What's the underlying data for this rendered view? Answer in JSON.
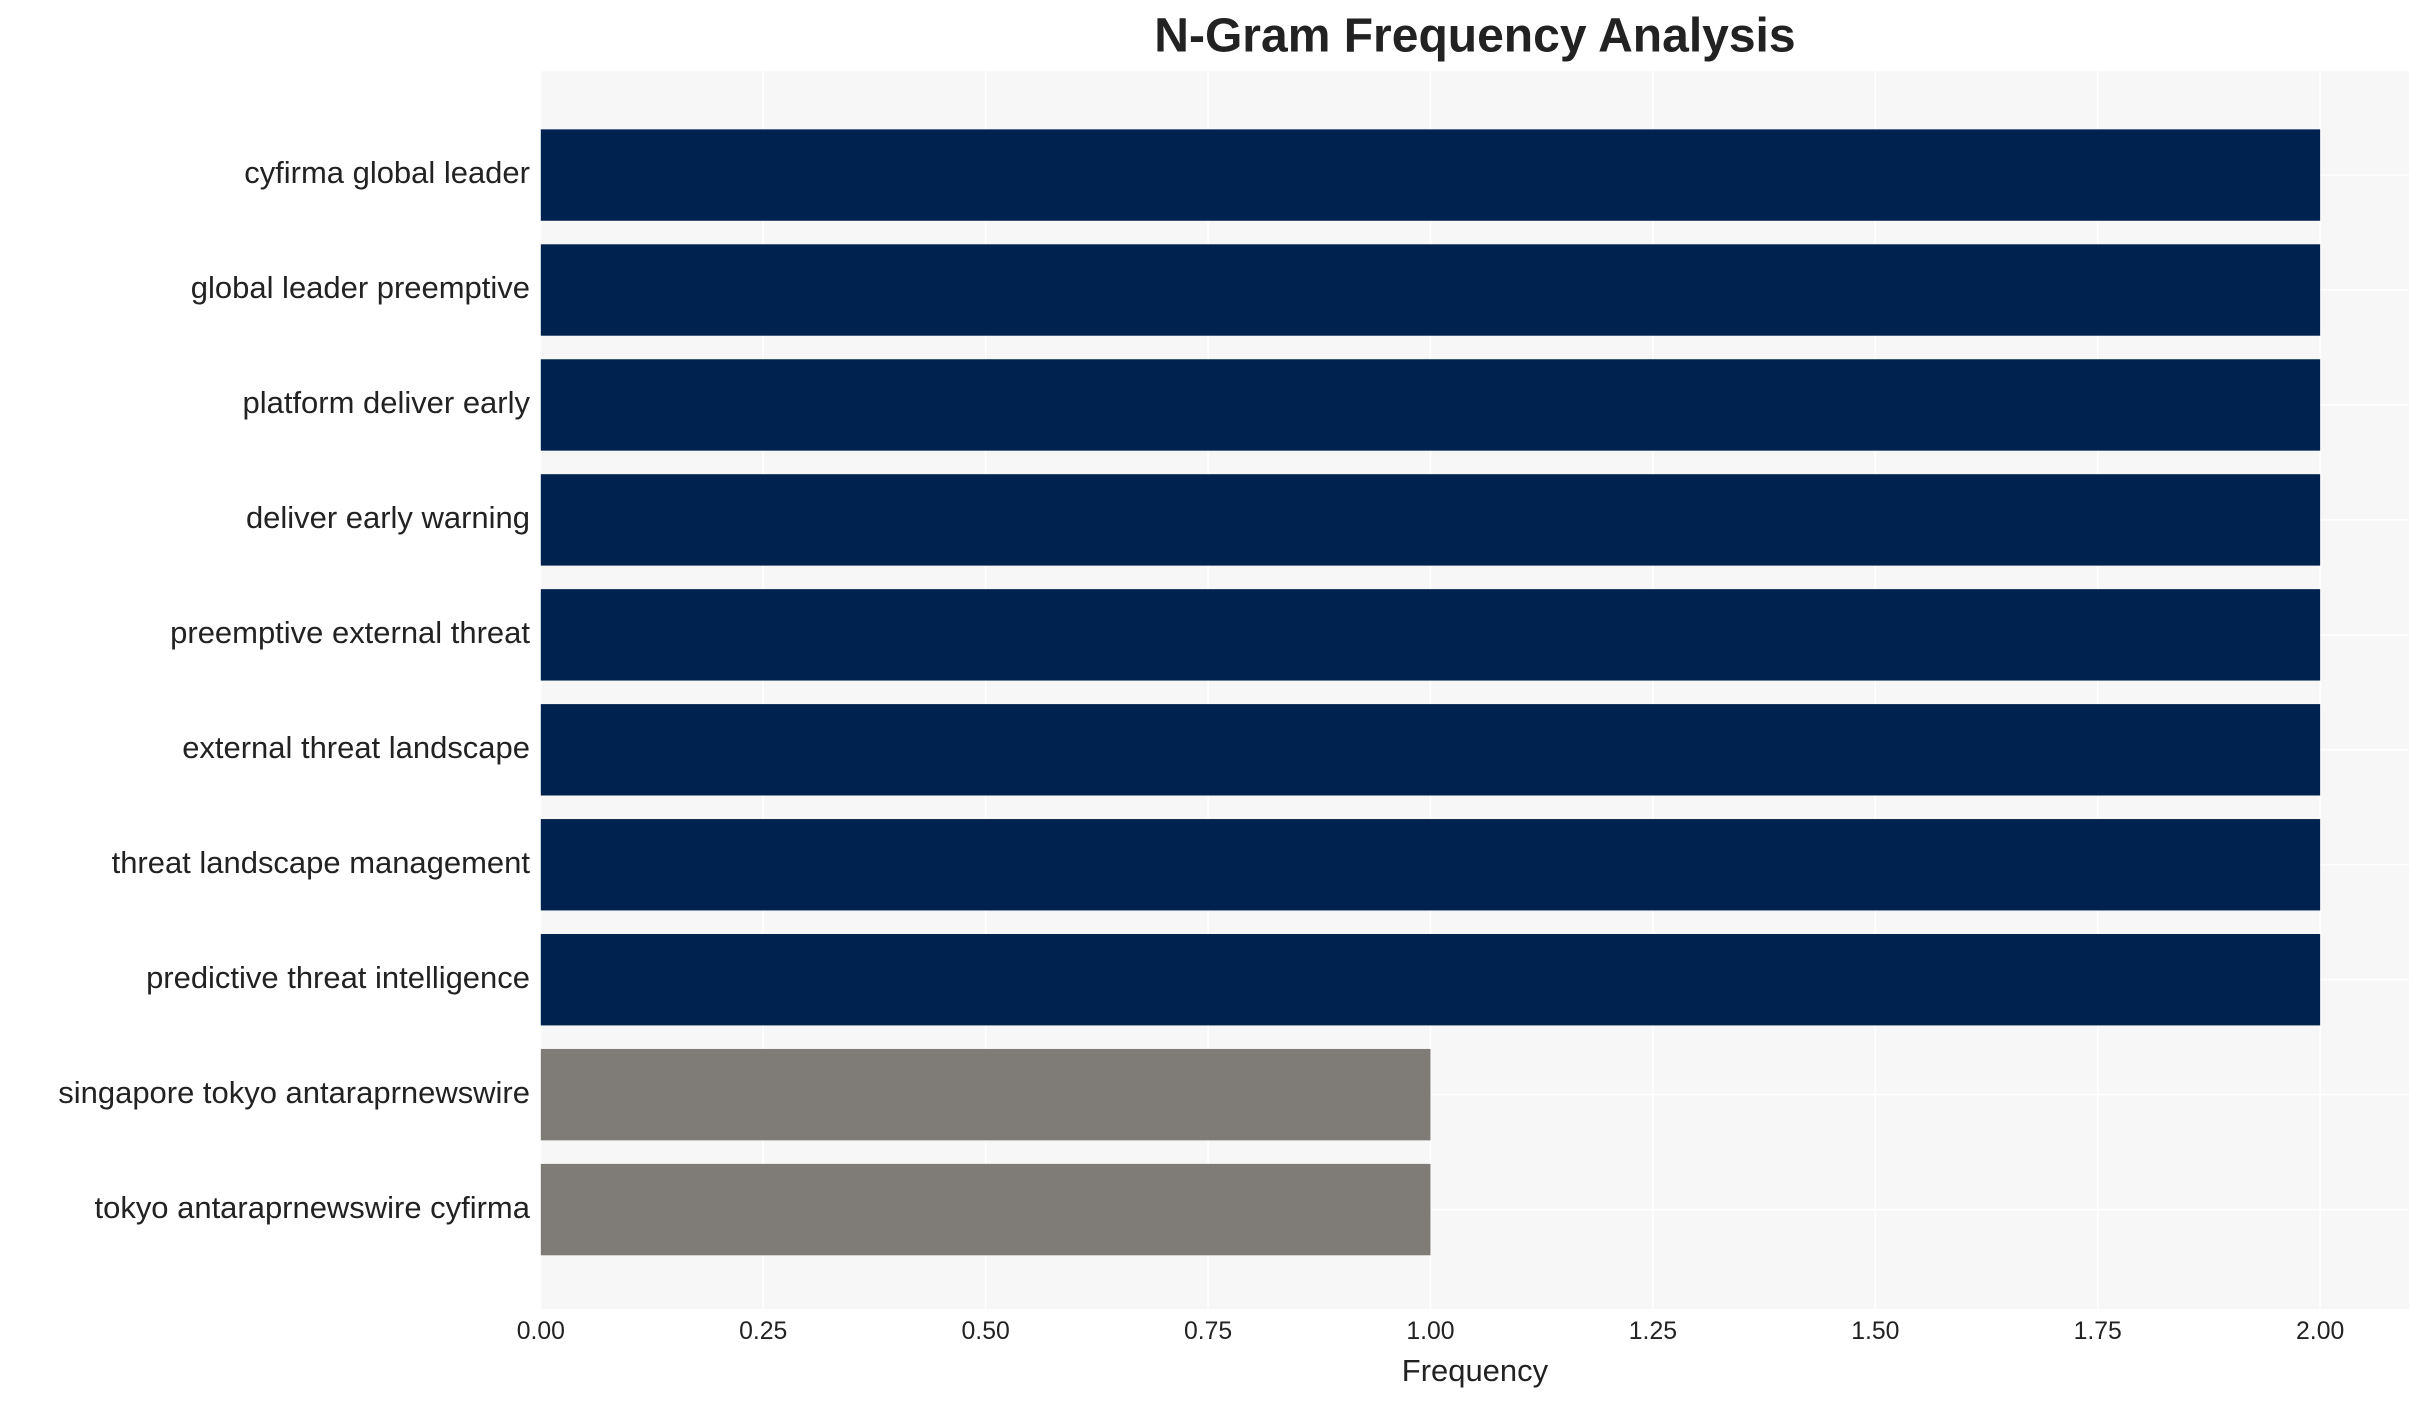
{
  "chart_data": {
    "type": "bar",
    "orientation": "horizontal",
    "title": "N-Gram Frequency Analysis",
    "xlabel": "Frequency",
    "categories": [
      "cyfirma global leader",
      "global leader preemptive",
      "platform deliver early",
      "deliver early warning",
      "preemptive external threat",
      "external threat landscape",
      "threat landscape management",
      "predictive threat intelligence",
      "singapore tokyo antaraprnewswire",
      "tokyo antaraprnewswire cyfirma"
    ],
    "values": [
      2,
      2,
      2,
      2,
      2,
      2,
      2,
      2,
      1,
      1
    ],
    "colors": [
      "#00224e",
      "#00224e",
      "#00224e",
      "#00224e",
      "#00224e",
      "#00224e",
      "#00224e",
      "#00224e",
      "#7f7c78",
      "#7f7c78"
    ],
    "xlim": [
      0,
      2.1
    ],
    "xticks": [
      {
        "value": 0,
        "label": "0.00"
      },
      {
        "value": 0.25,
        "label": "0.25"
      },
      {
        "value": 0.5,
        "label": "0.50"
      },
      {
        "value": 0.75,
        "label": "0.75"
      },
      {
        "value": 1,
        "label": "1.00"
      },
      {
        "value": 1.25,
        "label": "1.25"
      },
      {
        "value": 1.5,
        "label": "1.50"
      },
      {
        "value": 1.75,
        "label": "1.75"
      },
      {
        "value": 2,
        "label": "2.00"
      }
    ],
    "grid": true
  }
}
